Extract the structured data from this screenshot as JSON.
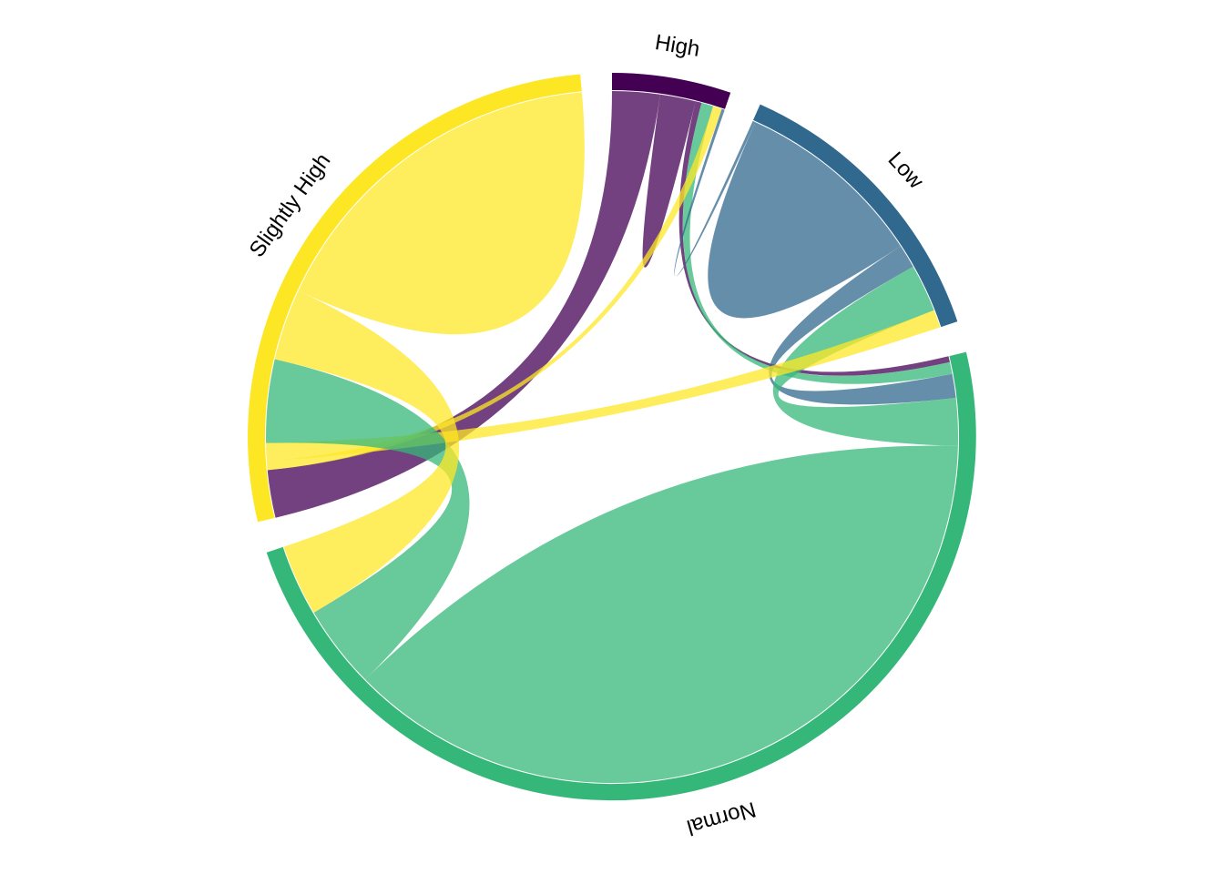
{
  "chart_data": {
    "type": "chord",
    "title": "",
    "sectors": [
      {
        "name": "High",
        "color": "#440154"
      },
      {
        "name": "Low",
        "color": "#31688E"
      },
      {
        "name": "Normal",
        "color": "#35B779"
      },
      {
        "name": "Slightly High",
        "color": "#FDE725"
      }
    ],
    "links": [
      {
        "from": "High",
        "to": "Slightly High",
        "value": 8
      },
      {
        "from": "High",
        "to": "High",
        "value": 3
      },
      {
        "from": "High",
        "to": "Normal",
        "value": 1
      },
      {
        "from": "Normal",
        "to": "High",
        "value": 2
      },
      {
        "from": "Slightly High",
        "to": "High",
        "value": 1.5
      },
      {
        "from": "Low",
        "to": "High",
        "value": 0.5
      },
      {
        "from": "Low",
        "to": "Low",
        "value": 16
      },
      {
        "from": "Low",
        "to": "Normal",
        "value": 4
      },
      {
        "from": "Normal",
        "to": "Low",
        "value": 8
      },
      {
        "from": "Slightly High",
        "to": "Low",
        "value": 3
      },
      {
        "from": "Normal",
        "to": "Normal",
        "value": 67
      },
      {
        "from": "Normal",
        "to": "Slightly High",
        "value": 14
      },
      {
        "from": "Slightly High",
        "to": "Normal",
        "value": 12
      },
      {
        "from": "Slightly High",
        "to": "Slightly High",
        "value": 30
      }
    ]
  }
}
